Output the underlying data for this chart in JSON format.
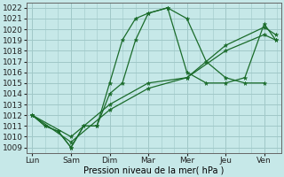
{
  "title": "",
  "xlabel": "Pression niveau de la mer( hPa )",
  "xtick_labels": [
    "Lun",
    "Sam",
    "Dim",
    "Mar",
    "Mer",
    "Jeu",
    "Ven"
  ],
  "ylim": [
    1008.5,
    1022.5
  ],
  "ytick_min": 1009,
  "ytick_max": 1022,
  "background_color": "#c6e8e8",
  "grid_color": "#a0c8c8",
  "line_color": "#1a6b2a",
  "series": [
    {
      "x": [
        0,
        0.33,
        0.67,
        1.0,
        1.33,
        1.67,
        2.0,
        2.33,
        2.67,
        3.0,
        3.5,
        4.0,
        4.5,
        5.0,
        5.5,
        6.0
      ],
      "y": [
        1012,
        1011,
        1010.5,
        1009,
        1011,
        1011,
        1014,
        1015,
        1019,
        1021.5,
        1022,
        1021,
        1017,
        1015.5,
        1015,
        1015
      ]
    },
    {
      "x": [
        0,
        0.33,
        0.67,
        1.0,
        1.33,
        1.67,
        2.0,
        2.33,
        2.67,
        3.0,
        3.5,
        4.0,
        4.5,
        5.0,
        5.5,
        6.0,
        6.3
      ],
      "y": [
        1012,
        1011,
        1010.5,
        1009,
        1011,
        1011,
        1015,
        1019,
        1021,
        1021.5,
        1022,
        1016,
        1015,
        1015,
        1015.5,
        1020.5,
        1019
      ]
    },
    {
      "x": [
        0,
        1.0,
        2.0,
        3.0,
        4.0,
        5.0,
        6.0,
        6.3
      ],
      "y": [
        1012,
        1009.5,
        1012.5,
        1014.5,
        1015.5,
        1018.0,
        1019.5,
        1019.0
      ]
    },
    {
      "x": [
        0,
        1.0,
        2.0,
        3.0,
        4.0,
        5.0,
        6.0,
        6.3
      ],
      "y": [
        1012,
        1010.0,
        1013.0,
        1015.0,
        1015.5,
        1018.5,
        1020.2,
        1019.5
      ]
    }
  ]
}
